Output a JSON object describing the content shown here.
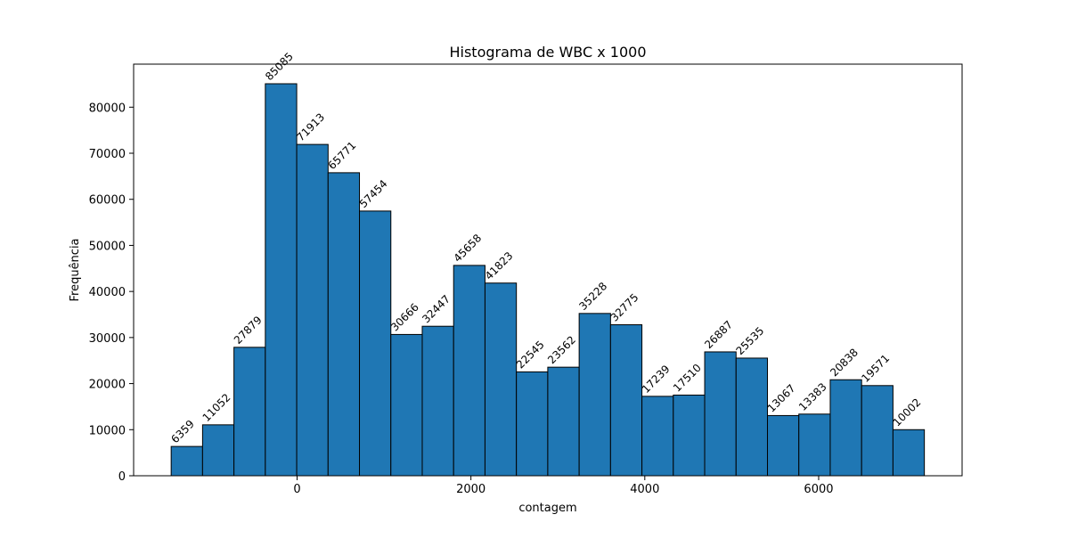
{
  "chart_data": {
    "type": "bar",
    "title": "Histograma de WBC x 1000",
    "xlabel": "contagem",
    "ylabel": "Frequência",
    "bin_edges": [
      -1448,
      -1087,
      -726,
      -365,
      -4,
      357,
      718,
      1079,
      1440,
      1801,
      2162,
      2523,
      2884,
      3245,
      3606,
      3967,
      4328,
      4689,
      5050,
      5411,
      5772,
      6133,
      6494,
      6855,
      7216
    ],
    "values": [
      6359,
      11052,
      27879,
      85085,
      71913,
      65771,
      57454,
      30666,
      32447,
      45658,
      41823,
      22545,
      23562,
      35228,
      32775,
      17239,
      17510,
      26887,
      25535,
      13067,
      13383,
      20838,
      19571,
      10002
    ],
    "xlim": [
      -1880,
      7650
    ],
    "ylim": [
      0,
      89339
    ],
    "xticks": [
      0,
      2000,
      4000,
      6000
    ],
    "yticks": [
      0,
      10000,
      20000,
      30000,
      40000,
      50000,
      60000,
      70000,
      80000
    ],
    "bar_color": "#1f77b4",
    "edge_color": "#000000",
    "grid": false,
    "legend": null
  }
}
